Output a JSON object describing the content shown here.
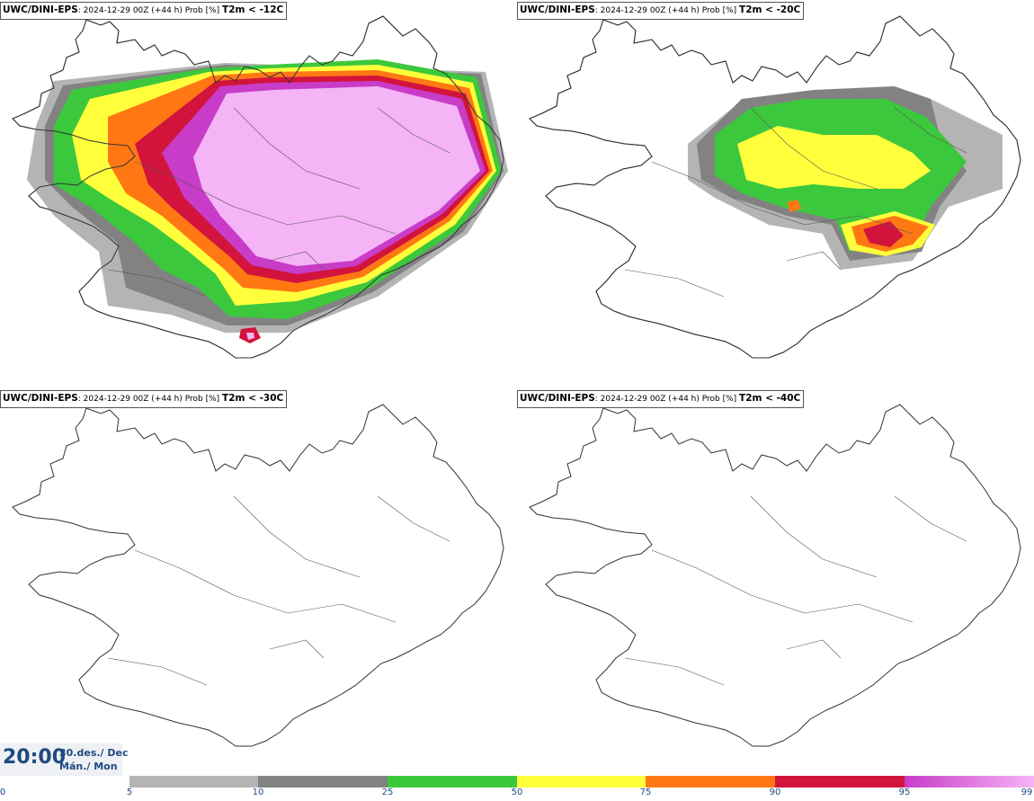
{
  "panels": [
    {
      "model": "UWC/DINI-EPS",
      "run": ": 2024-12-29 00Z (+44 h) Prob [%]",
      "param": "T2m < -12C"
    },
    {
      "model": "UWC/DINI-EPS",
      "run": ": 2024-12-29 00Z (+44 h) Prob [%]",
      "param": "T2m < -20C"
    },
    {
      "model": "UWC/DINI-EPS",
      "run": ": 2024-12-29 00Z (+44 h) Prob [%]",
      "param": "T2m < -30C"
    },
    {
      "model": "UWC/DINI-EPS",
      "run": ": 2024-12-29 00Z (+44 h) Prob [%]",
      "param": "T2m < -40C"
    }
  ],
  "time": {
    "clock": "20:00",
    "date_line": "30.des./ Dec",
    "day_line": "Mán./ Mon"
  },
  "colorbar": {
    "labels": [
      "0",
      "5",
      "10",
      "25",
      "50",
      "75",
      "90",
      "95",
      "99"
    ],
    "colors": {
      "0_5": "#ffffff",
      "5_10": "#b4b4b4",
      "10_25": "#828282",
      "25_50": "#3cc83c",
      "50_75": "#ffff3c",
      "75_90": "#ff7814",
      "90_95": "#d2143c",
      "95_99_start": "#c83cc8",
      "95_99_end": "#f5b4f5"
    }
  }
}
